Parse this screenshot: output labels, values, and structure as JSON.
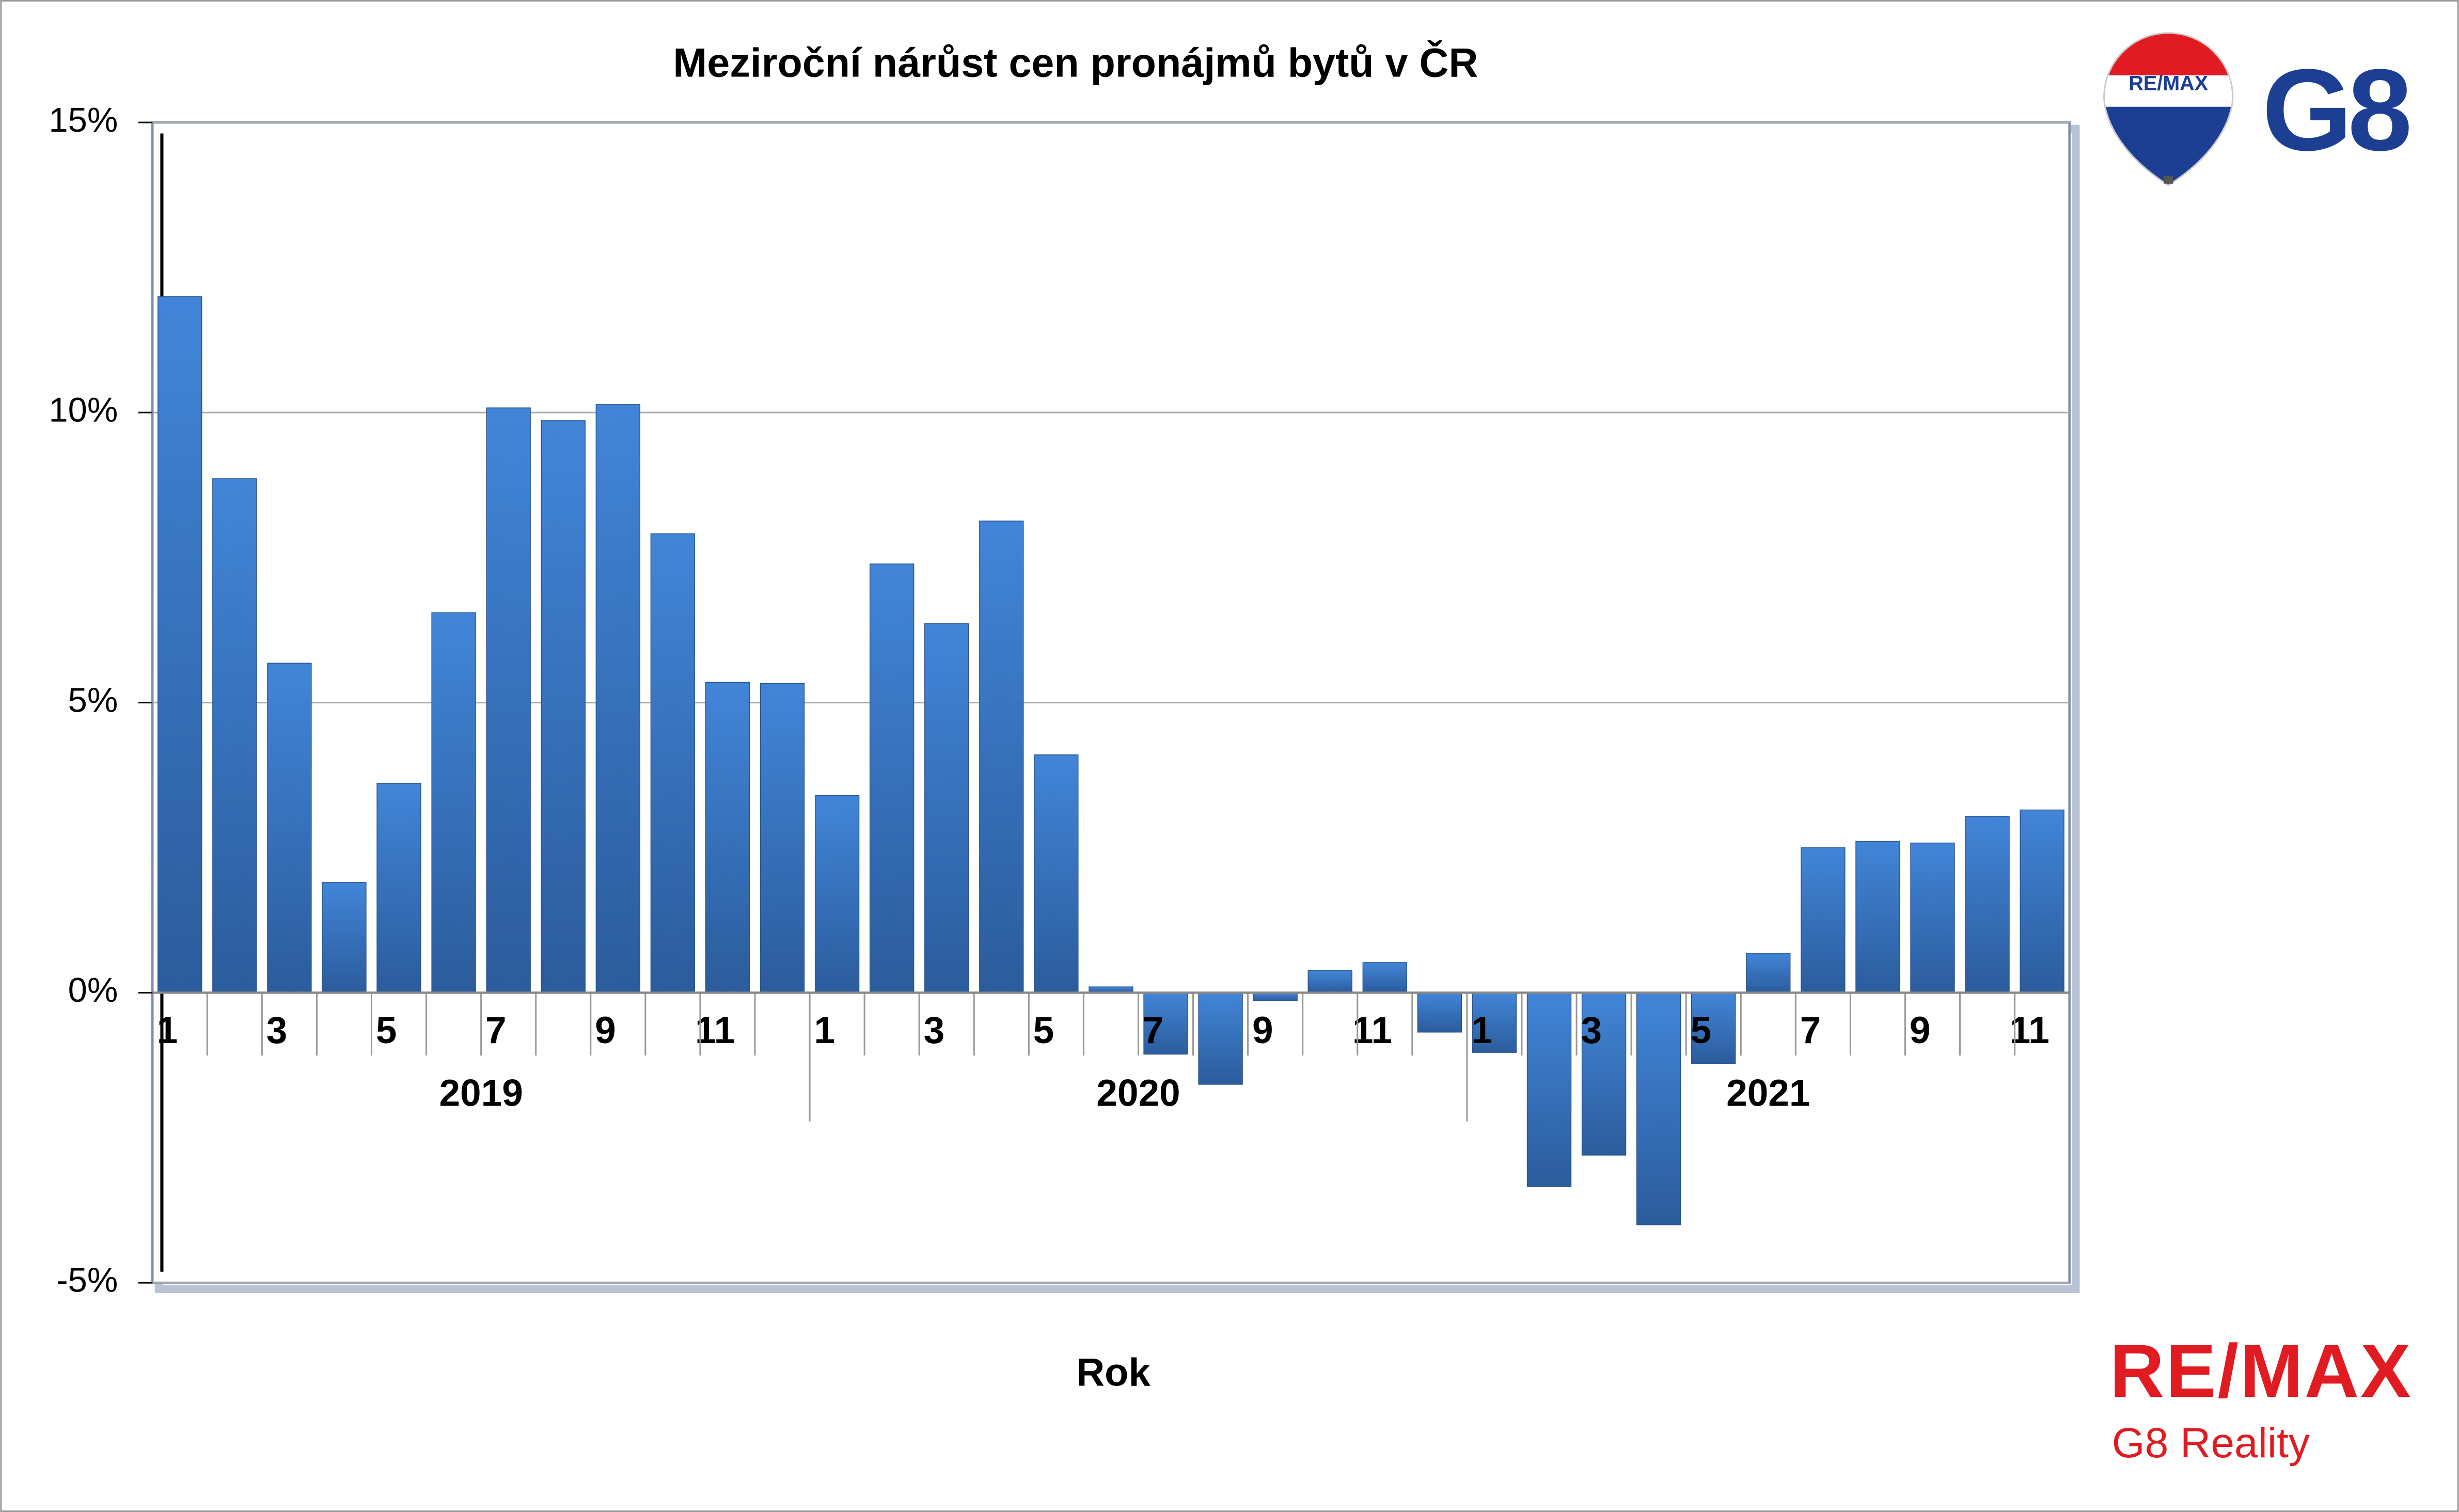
{
  "chart_data": {
    "type": "bar",
    "title": "Meziroční nárůst cen pronájmů bytů v ČR",
    "x_label": "Rok",
    "categories": [
      "1",
      null,
      "3",
      null,
      "5",
      null,
      "7",
      null,
      "9",
      null,
      "11",
      null,
      "1",
      null,
      "3",
      null,
      "5",
      null,
      "7",
      null,
      "9",
      null,
      "11",
      null,
      "1",
      null,
      "3",
      null,
      "5",
      null,
      "7",
      null,
      "9",
      null,
      "11"
    ],
    "groups": [
      "2019",
      "2020",
      "2021"
    ],
    "values": [
      12.0,
      8.86,
      5.68,
      1.9,
      3.61,
      6.55,
      10.08,
      9.86,
      10.14,
      7.91,
      5.35,
      5.33,
      3.4,
      7.39,
      6.36,
      8.13,
      4.1,
      0.1,
      -1.06,
      -1.58,
      -0.14,
      0.38,
      0.52,
      -0.68,
      -1.03,
      -3.34,
      -2.8,
      -4.0,
      -1.22,
      0.68,
      2.5,
      2.61,
      2.58,
      3.04,
      3.15
    ],
    "color": "#3a78c8",
    "ylim": [
      -5,
      15
    ],
    "yticks": [
      {
        "value": -5,
        "label": "-5%"
      },
      {
        "value": 0,
        "label": "0%"
      },
      {
        "value": 5,
        "label": "5%"
      },
      {
        "value": 10,
        "label": "10%"
      },
      {
        "value": 15,
        "label": "15%"
      }
    ],
    "grid": true
  },
  "branding": {
    "badge": "RE/MAX",
    "mark": "G8",
    "wordmark": "RE/MAX",
    "tagline": "G8 Reality"
  }
}
